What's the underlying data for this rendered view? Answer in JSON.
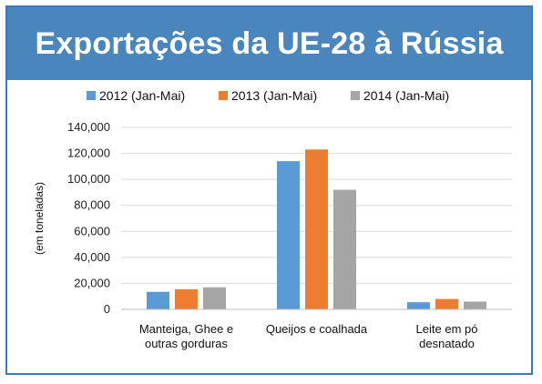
{
  "title": "Exportações da UE-28 à Rússia",
  "chart_data": {
    "type": "bar",
    "title": "Exportações da UE-28 à Rússia",
    "ylabel": "(em toneladas)",
    "xlabel": "",
    "ylim": [
      0,
      140000
    ],
    "yticks": [
      0,
      20000,
      40000,
      60000,
      80000,
      100000,
      120000,
      140000
    ],
    "ytick_labels": [
      "0",
      "20,000",
      "40,000",
      "60,000",
      "80,000",
      "100,000",
      "120,000",
      "140,000"
    ],
    "grid": true,
    "legend_position": "top",
    "categories": [
      [
        "Manteiga, Ghee e",
        "outras gorduras"
      ],
      [
        "Queijos e coalhada"
      ],
      [
        "Leite em pó",
        "desnatado"
      ]
    ],
    "series": [
      {
        "name": "2012 (Jan-Mai)",
        "color": "#5b9bd5",
        "values": [
          13500,
          114000,
          5500
        ]
      },
      {
        "name": "2013 (Jan-Mai)",
        "color": "#ed7d31",
        "values": [
          15500,
          123000,
          8000
        ]
      },
      {
        "name": "2014 (Jan-Mai)",
        "color": "#a5a5a5",
        "values": [
          17000,
          92000,
          6000
        ]
      }
    ]
  }
}
